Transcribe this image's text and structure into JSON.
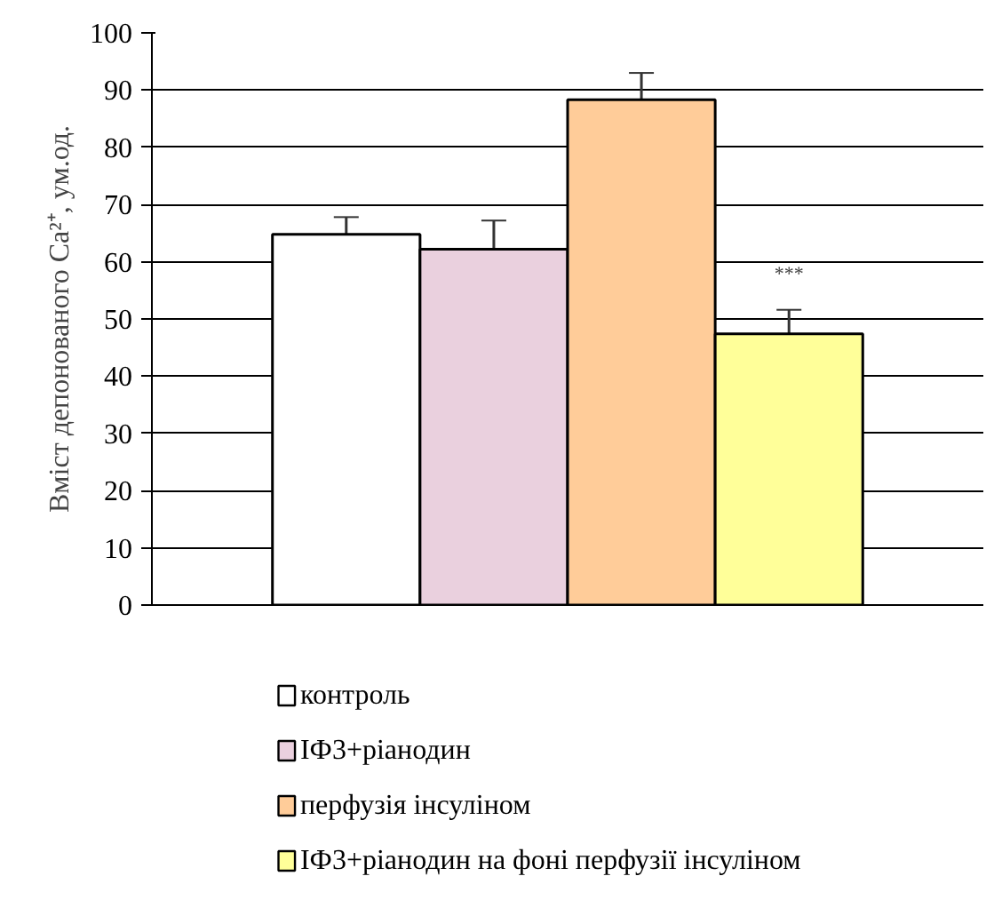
{
  "chart_data": {
    "type": "bar",
    "ylabel": "Вміст депонованого Ca²⁺, ум.од.",
    "categories": [
      null
    ],
    "series": [
      {
        "name": "контроль",
        "color": "#ffffff",
        "values": [
          64.8
        ],
        "errors": [
          3
        ]
      },
      {
        "name": "ІФ3+ріанодин",
        "color": "#ead0de",
        "values": [
          62.2
        ],
        "errors": [
          5
        ]
      },
      {
        "name": "перфузія інсуліном",
        "color": "#ffcc99",
        "values": [
          88.3
        ],
        "errors": [
          4.7
        ]
      },
      {
        "name": "ІФ3+ріанодин на фоні перфузії інсуліном",
        "color": "#ffff99",
        "values": [
          47.4
        ],
        "errors": [
          4.2
        ]
      }
    ],
    "annotations": [
      "***"
    ],
    "ylim": [
      0,
      100
    ],
    "yticks": [
      0,
      10,
      20,
      30,
      40,
      50,
      60,
      70,
      80,
      90,
      100
    ],
    "grid": "y",
    "legend": "bottom"
  }
}
